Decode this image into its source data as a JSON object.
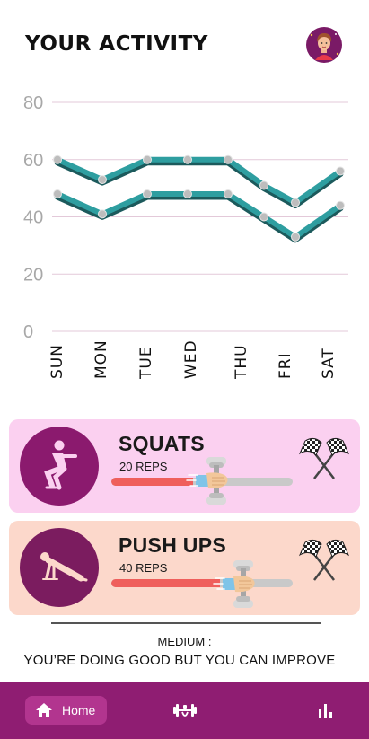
{
  "header": {
    "title": "YOUR ACTIVITY",
    "avatar_icon": "user-avatar-icon"
  },
  "chart_data": {
    "type": "line",
    "categories": [
      "SUN",
      "MON",
      "TUE",
      "WED",
      "THU",
      "FRI",
      "SAT"
    ],
    "y_ticks": [
      0,
      20,
      40,
      60,
      80
    ],
    "ylim": [
      0,
      80
    ],
    "grid": true,
    "series": [
      {
        "values": [
          60,
          53,
          60,
          60,
          60,
          51,
          45,
          56
        ],
        "x": [
          0,
          1,
          2,
          2.9,
          3.8,
          4.6,
          5.3,
          6.3
        ],
        "color": "#2e9ea0"
      },
      {
        "values": [
          48,
          41,
          48,
          48,
          48,
          40,
          33,
          44
        ],
        "x": [
          0,
          1,
          2,
          2.9,
          3.8,
          4.6,
          5.3,
          6.3
        ],
        "color": "#2e9ea0"
      }
    ]
  },
  "exercises": [
    {
      "name": "SQUATS",
      "reps": "20 REPS",
      "progress": 0.45,
      "icon": "squat-figure-icon"
    },
    {
      "name": "PUSH UPS",
      "reps": "40 REPS",
      "progress": 0.6,
      "icon": "pushup-figure-icon"
    }
  ],
  "summary": {
    "level": "MEDIUM :",
    "message": "YOU’RE DOING GOOD BUT YOU CAN IMPROVE"
  },
  "nav": {
    "home_label": "Home",
    "home_icon": "home-icon",
    "workout_icon": "dumbbell-icon",
    "stats_icon": "bar-chart-icon"
  }
}
